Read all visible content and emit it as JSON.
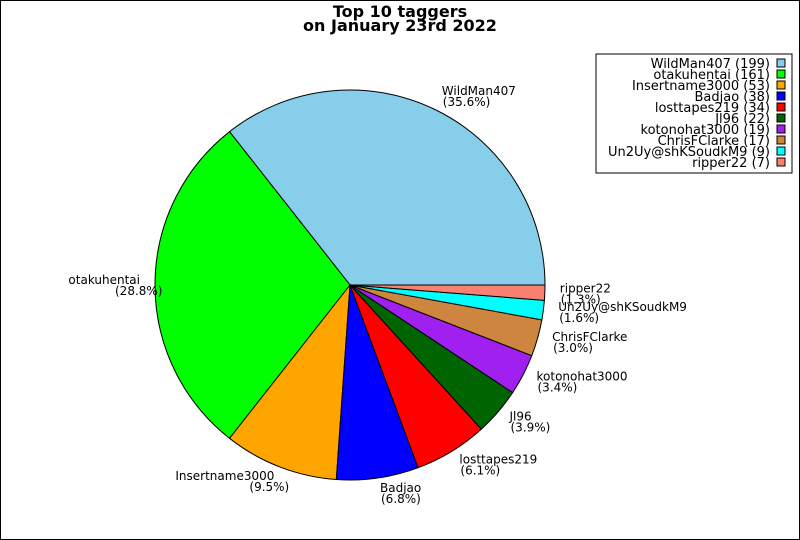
{
  "chart_data": {
    "type": "pie",
    "title_lines": [
      "Top 10 taggers",
      "on January 23rd 2022"
    ],
    "legend_position": "top-right",
    "start_angle_deg": 0,
    "direction": "counterclockwise",
    "slices": [
      {
        "name": "WildMan407",
        "value": 199,
        "percent": "35.6%",
        "color": "#87CEEB"
      },
      {
        "name": "otakuhentai",
        "value": 161,
        "percent": "28.8%",
        "color": "#00FF00"
      },
      {
        "name": "Insertname3000",
        "value": 53,
        "percent": "9.5%",
        "color": "#FFA500"
      },
      {
        "name": "Badjao",
        "value": 38,
        "percent": "6.8%",
        "color": "#0000FF"
      },
      {
        "name": "losttapes219",
        "value": 34,
        "percent": "6.1%",
        "color": "#FF0000"
      },
      {
        "name": "Jl96",
        "value": 22,
        "percent": "3.9%",
        "color": "#006400"
      },
      {
        "name": "kotonohat3000",
        "value": 19,
        "percent": "3.4%",
        "color": "#A020F0"
      },
      {
        "name": "ChrisFClarke",
        "value": 17,
        "percent": "3.0%",
        "color": "#CD853F"
      },
      {
        "name": "Un2Uy@shKSoudkM9",
        "value": 9,
        "percent": "1.6%",
        "color": "#00FFFF"
      },
      {
        "name": "ripper22",
        "value": 7,
        "percent": "1.3%",
        "color": "#FA8072"
      }
    ]
  }
}
